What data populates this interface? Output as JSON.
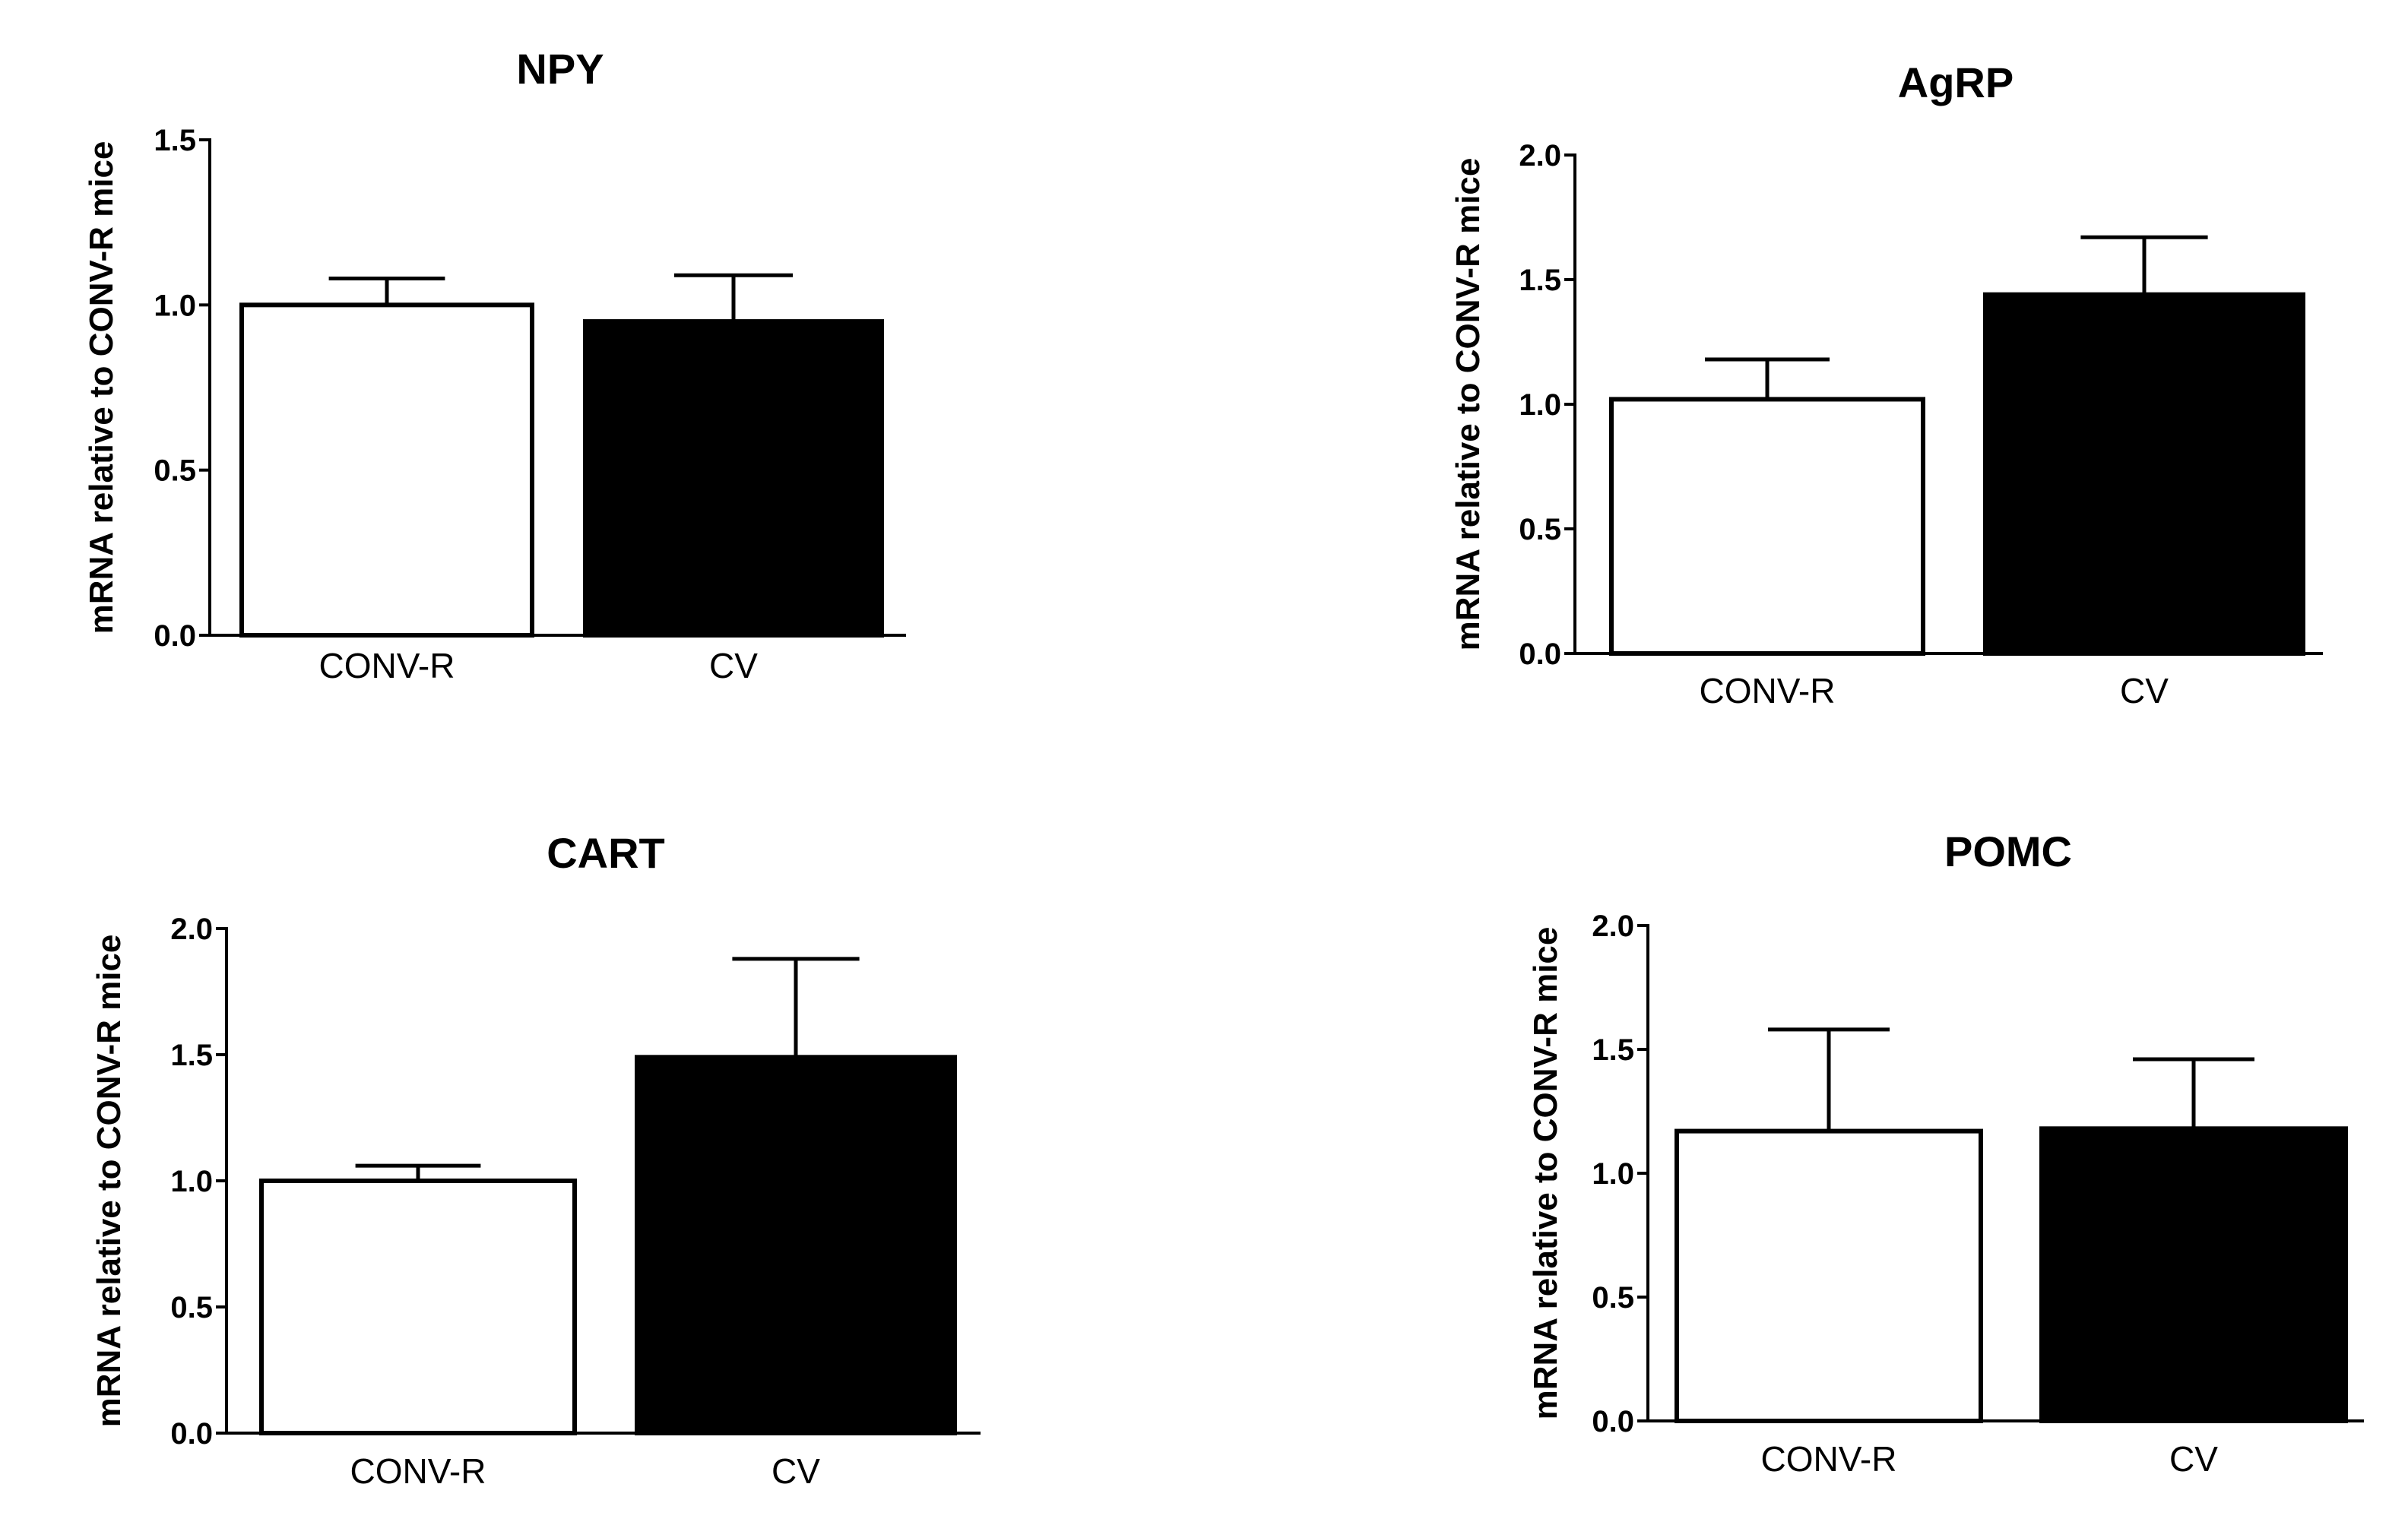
{
  "chart_data": [
    {
      "type": "bar",
      "title": "NPY",
      "ylabel": "mRNA relative to CONV-R mice",
      "xlabel": "",
      "categories": [
        "CONV-R",
        "CV"
      ],
      "values": [
        1.0,
        0.95
      ],
      "errors": [
        0.08,
        0.14
      ],
      "fills": [
        "#ffffff",
        "#000000"
      ],
      "ylim": [
        0,
        1.5
      ],
      "yticks": [
        "0.0",
        "0.5",
        "1.0",
        "1.5"
      ]
    },
    {
      "type": "bar",
      "title": "AgRP",
      "ylabel": "mRNA relative to CONV-R mice",
      "xlabel": "",
      "categories": [
        "CONV-R",
        "CV"
      ],
      "values": [
        1.02,
        1.44
      ],
      "errors": [
        0.16,
        0.23
      ],
      "fills": [
        "#ffffff",
        "#000000"
      ],
      "ylim": [
        0,
        2.0
      ],
      "yticks": [
        "0.0",
        "0.5",
        "1.0",
        "1.5",
        "2.0"
      ]
    },
    {
      "type": "bar",
      "title": "CART",
      "ylabel": "mRNA relative to CONV-R mice",
      "xlabel": "",
      "categories": [
        "CONV-R",
        "CV"
      ],
      "values": [
        1.0,
        1.49
      ],
      "errors": [
        0.06,
        0.39
      ],
      "fills": [
        "#ffffff",
        "#000000"
      ],
      "ylim": [
        0,
        2.0
      ],
      "yticks": [
        "0.0",
        "0.5",
        "1.0",
        "1.5",
        "2.0"
      ]
    },
    {
      "type": "bar",
      "title": "POMC",
      "ylabel": "mRNA relative to CONV-R mice",
      "xlabel": "",
      "categories": [
        "CONV-R",
        "CV"
      ],
      "values": [
        1.17,
        1.18
      ],
      "errors": [
        0.41,
        0.28
      ],
      "fills": [
        "#ffffff",
        "#000000"
      ],
      "ylim": [
        0,
        2.0
      ],
      "yticks": [
        "0.0",
        "0.5",
        "1.0",
        "1.5",
        "2.0"
      ]
    }
  ]
}
